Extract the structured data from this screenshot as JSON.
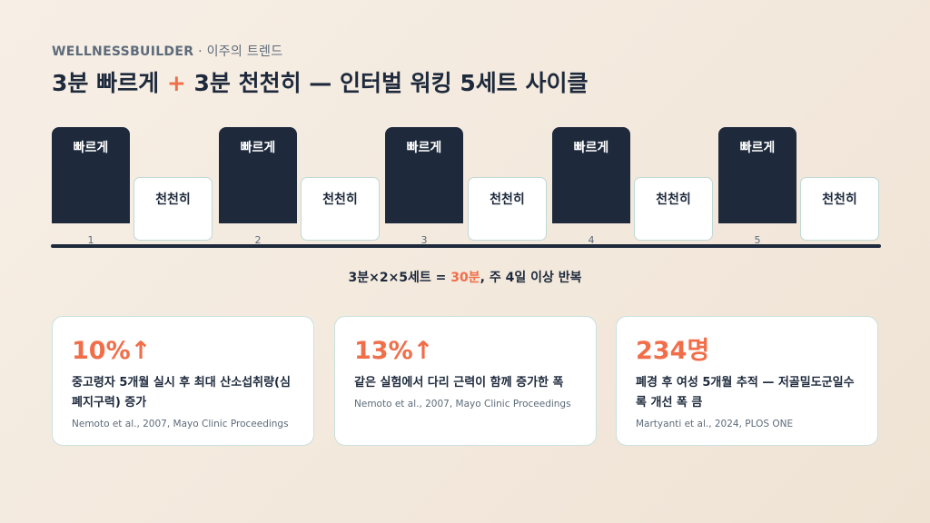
{
  "header": {
    "brand": "WELLNESSBUILDER",
    "sub": " · 이주의 트렌드",
    "title_part1": "3분 빠르게 ",
    "title_plus": "+",
    "title_part2": " 3분 천천히 — 인터벌 워킹 5세트 사이클"
  },
  "timeline": {
    "fast_label": "빠르게",
    "slow_label": "천천히",
    "sets": [
      "1",
      "2",
      "3",
      "4",
      "5"
    ]
  },
  "summary": {
    "pre": "3분×2×5세트 = ",
    "highlight": "30분",
    "post": ", 주 4일 이상 반복"
  },
  "cards": [
    {
      "stat": "10%↑",
      "desc": "중고령자 5개월 실시 후 최대 산소섭취량(심폐지구력) 증가",
      "source": "Nemoto et al., 2007, Mayo Clinic Proceedings"
    },
    {
      "stat": "13%↑",
      "desc": "같은 실험에서 다리 근력이 함께 증가한 폭",
      "source": "Nemoto et al., 2007, Mayo Clinic Proceedings"
    },
    {
      "stat": "234명",
      "desc": "폐경 후 여성 5개월 추적 — 저골밀도군일수록 개선 폭 큼",
      "source": "Martyanti et al., 2024, PLOS ONE"
    }
  ],
  "colors": {
    "accent": "#f06e4a",
    "navy": "#1e2a3c",
    "card_border": "#c9e2dd"
  }
}
